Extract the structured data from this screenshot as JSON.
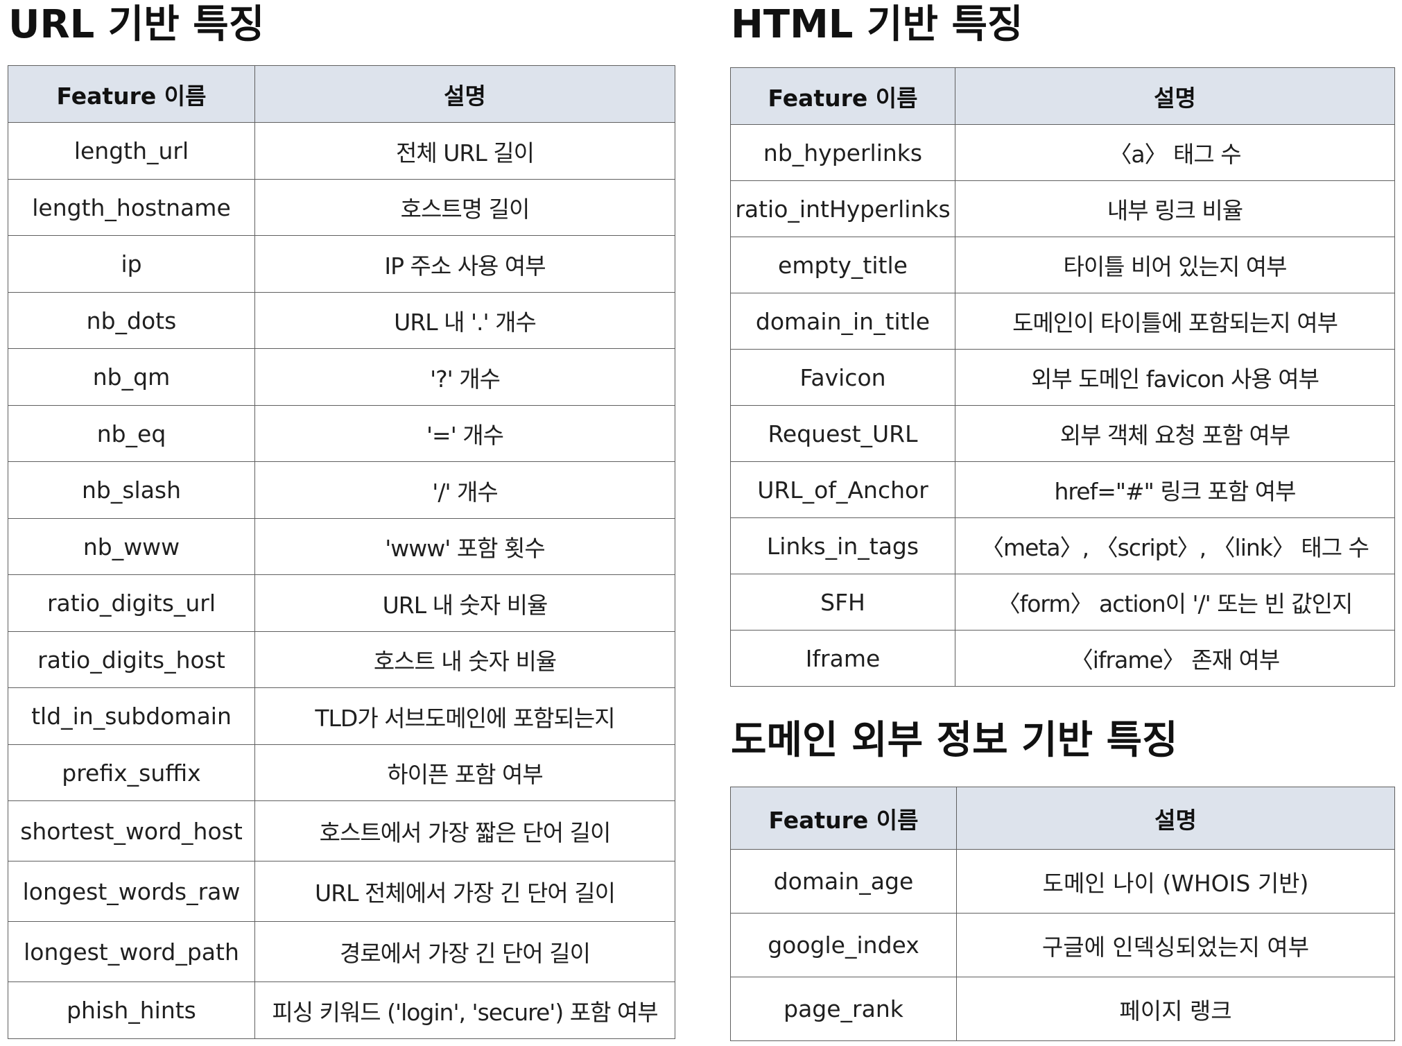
{
  "url_section": {
    "title": "URL 기반 특징",
    "header": {
      "feature": "Feature 이름",
      "description": "설명"
    },
    "rows": [
      {
        "feature": "length_url",
        "description": "전체 URL 길이"
      },
      {
        "feature": "length_hostname",
        "description": "호스트명 길이"
      },
      {
        "feature": "ip",
        "description": "IP 주소 사용 여부"
      },
      {
        "feature": "nb_dots",
        "description": "URL 내 '.' 개수"
      },
      {
        "feature": "nb_qm",
        "description": "'?' 개수"
      },
      {
        "feature": "nb_eq",
        "description": "'=' 개수"
      },
      {
        "feature": "nb_slash",
        "description": "'/' 개수"
      },
      {
        "feature": "nb_www",
        "description": "'www' 포함 횟수"
      },
      {
        "feature": "ratio_digits_url",
        "description": "URL 내 숫자 비율"
      },
      {
        "feature": "ratio_digits_host",
        "description": "호스트 내 숫자 비율"
      },
      {
        "feature": "tld_in_subdomain",
        "description": "TLD가 서브도메인에 포함되는지"
      },
      {
        "feature": "prefix_suffix",
        "description": "하이픈 포함 여부"
      },
      {
        "feature": "shortest_word_host",
        "description": "호스트에서 가장 짧은 단어 길이"
      },
      {
        "feature": "longest_words_raw",
        "description": "URL 전체에서 가장 긴 단어 길이"
      },
      {
        "feature": "longest_word_path",
        "description": "경로에서 가장 긴 단어 길이"
      },
      {
        "feature": "phish_hints",
        "description": "피싱 키워드 ('login', 'secure') 포함 여부"
      }
    ]
  },
  "html_section": {
    "title": "HTML 기반 특징",
    "header": {
      "feature": "Feature 이름",
      "description": "설명"
    },
    "rows": [
      {
        "feature": "nb_hyperlinks",
        "description": "〈a〉 태그 수"
      },
      {
        "feature": "ratio_intHyperlinks",
        "description": "내부 링크 비율"
      },
      {
        "feature": "empty_title",
        "description": "타이틀 비어 있는지 여부"
      },
      {
        "feature": "domain_in_title",
        "description": "도메인이 타이틀에 포함되는지 여부"
      },
      {
        "feature": "Favicon",
        "description": "외부 도메인 favicon 사용 여부"
      },
      {
        "feature": "Request_URL",
        "description": "외부 객체 요청 포함 여부"
      },
      {
        "feature": "URL_of_Anchor",
        "description": "href=\"#\" 링크 포함 여부"
      },
      {
        "feature": "Links_in_tags",
        "description": "〈meta〉, 〈script〉, 〈link〉 태그 수"
      },
      {
        "feature": "SFH",
        "description": "〈form〉 action이 '/' 또는 빈 값인지"
      },
      {
        "feature": "Iframe",
        "description": "〈iframe〉 존재 여부"
      }
    ]
  },
  "domain_section": {
    "title": "도메인 외부 정보 기반 특징",
    "header": {
      "feature": "Feature 이름",
      "description": "설명"
    },
    "rows": [
      {
        "feature": "domain_age",
        "description": "도메인 나이 (WHOIS 기반)"
      },
      {
        "feature": "google_index",
        "description": "구글에 인덱싱되었는지 여부"
      },
      {
        "feature": "page_rank",
        "description": "페이지 랭크"
      }
    ]
  }
}
